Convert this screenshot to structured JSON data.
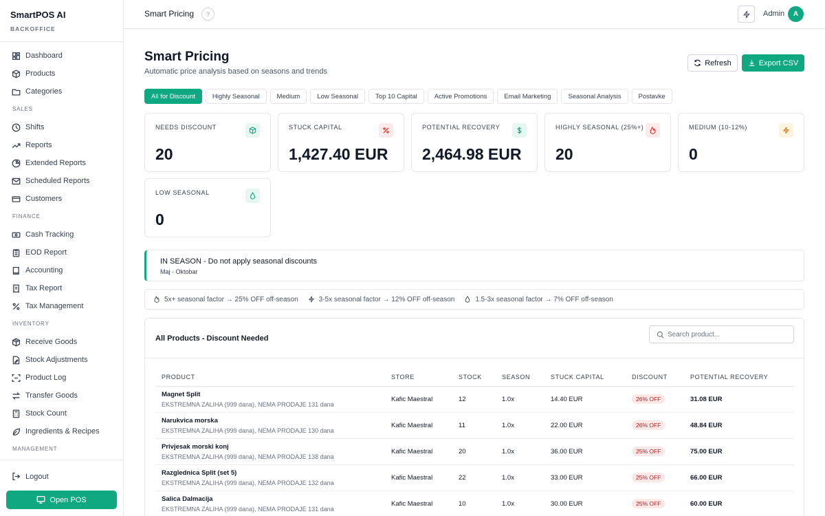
{
  "sidebar": {
    "brand": "SmartPOS AI",
    "brand_sub": "BACKOFFICE",
    "top_items": [
      {
        "label": "Dashboard",
        "icon": "dashboard-icon"
      },
      {
        "label": "Products",
        "icon": "box-icon"
      },
      {
        "label": "Categories",
        "icon": "folder-icon"
      }
    ],
    "sections": {
      "sales": "SALES",
      "finance": "FINANCE",
      "inventory": "INVENTORY",
      "management": "MANAGEMENT"
    },
    "sales_items": [
      {
        "label": "Shifts"
      },
      {
        "label": "Reports"
      },
      {
        "label": "Extended Reports"
      },
      {
        "label": "Scheduled Reports"
      },
      {
        "label": "Customers"
      }
    ],
    "finance_items": [
      {
        "label": "Cash Tracking"
      },
      {
        "label": "EOD Report"
      },
      {
        "label": "Accounting"
      },
      {
        "label": "Tax Report"
      },
      {
        "label": "Tax Management"
      }
    ],
    "inventory_items": [
      {
        "label": "Receive Goods"
      },
      {
        "label": "Stock Adjustments"
      },
      {
        "label": "Product Log"
      },
      {
        "label": "Transfer Goods"
      },
      {
        "label": "Stock Count"
      },
      {
        "label": "Ingredients & Recipes"
      }
    ],
    "logout": "Logout",
    "open_pos": "Open POS"
  },
  "header": {
    "title": "Smart Pricing",
    "user": "Admin",
    "avatar_letter": "A"
  },
  "page": {
    "title": "Smart Pricing",
    "subtitle": "Automatic price analysis based on seasons and trends",
    "refresh": "Refresh",
    "export": "Export CSV"
  },
  "tabs": [
    {
      "label": "All for Discount",
      "active": true
    },
    {
      "label": "Highly Seasonal"
    },
    {
      "label": "Medium"
    },
    {
      "label": "Low Seasonal"
    },
    {
      "label": "Top 10 Capital"
    },
    {
      "label": "Active Promotions"
    },
    {
      "label": "Email Marketing"
    },
    {
      "label": "Seasonal Analysis"
    },
    {
      "label": "Postavke"
    }
  ],
  "stats": [
    {
      "label": "NEEDS DISCOUNT",
      "value": "20",
      "icon": "cube-icon",
      "color": "#10a881",
      "bg": "#e6f6f1"
    },
    {
      "label": "STUCK CAPITAL",
      "value": "1,427.40 EUR",
      "icon": "percent-icon",
      "color": "#dc2626",
      "bg": "#fdeaea"
    },
    {
      "label": "POTENTIAL RECOVERY",
      "value": "2,464.98 EUR",
      "icon": "dollar-icon",
      "color": "#10a881",
      "bg": "#e6f6f1"
    },
    {
      "label": "HIGHLY SEASONAL (25%+)",
      "value": "20",
      "icon": "flame-icon",
      "color": "#dc2626",
      "bg": "#fdeaea"
    },
    {
      "label": "MEDIUM (10-12%)",
      "value": "0",
      "icon": "bolt-icon",
      "color": "#d97706",
      "bg": "#fdf3e1"
    },
    {
      "label": "LOW SEASONAL",
      "value": "0",
      "icon": "droplet-icon",
      "color": "#10a881",
      "bg": "#e6f6f1"
    }
  ],
  "season": {
    "title": "IN SEASON - Do not apply seasonal discounts",
    "range": "Maj - Oktobar"
  },
  "legend": [
    {
      "text": "5x+ seasonal factor → 25% OFF off-season",
      "icon": "flame-icon"
    },
    {
      "text": "3-5x seasonal factor → 12% OFF off-season",
      "icon": "bolt-icon"
    },
    {
      "text": "1.5-3x seasonal factor → 7% OFF off-season",
      "icon": "droplet-icon"
    }
  ],
  "table": {
    "title": "All Products - Discount Needed",
    "search_placeholder": "Search product...",
    "columns": [
      "PRODUCT",
      "STORE",
      "STOCK",
      "SEASON",
      "STUCK CAPITAL",
      "DISCOUNT",
      "POTENTIAL RECOVERY"
    ],
    "rows": [
      {
        "name": "Magnet Split",
        "note": "EKSTREMNA ZALIHA (999 dana), NEMA PRODAJE 131 dana",
        "store": "Kafic Maestral",
        "stock": "12",
        "season": "1.0x",
        "capital": "14.40 EUR",
        "discount": "26% OFF",
        "recovery": "31.08 EUR"
      },
      {
        "name": "Narukvica morska",
        "note": "EKSTREMNA ZALIHA (999 dana), NEMA PRODAJE 130 dana",
        "store": "Kafic Maestral",
        "stock": "11",
        "season": "1.0x",
        "capital": "22.00 EUR",
        "discount": "26% OFF",
        "recovery": "48.84 EUR"
      },
      {
        "name": "Privjesak morski konj",
        "note": "EKSTREMNA ZALIHA (999 dana), NEMA PRODAJE 138 dana",
        "store": "Kafic Maestral",
        "stock": "20",
        "season": "1.0x",
        "capital": "36.00 EUR",
        "discount": "25% OFF",
        "recovery": "75.00 EUR"
      },
      {
        "name": "Razglednica Split (set 5)",
        "note": "EKSTREMNA ZALIHA (999 dana), NEMA PRODAJE 132 dana",
        "store": "Kafic Maestral",
        "stock": "22",
        "season": "1.0x",
        "capital": "33.00 EUR",
        "discount": "25% OFF",
        "recovery": "66.00 EUR"
      },
      {
        "name": "Salica Dalmacija",
        "note": "EKSTREMNA ZALIHA (999 dana), NEMA PRODAJE 131 dana",
        "store": "Kafic Maestral",
        "stock": "10",
        "season": "1.0x",
        "capital": "30.00 EUR",
        "discount": "25% OFF",
        "recovery": "60.00 EUR"
      }
    ]
  }
}
